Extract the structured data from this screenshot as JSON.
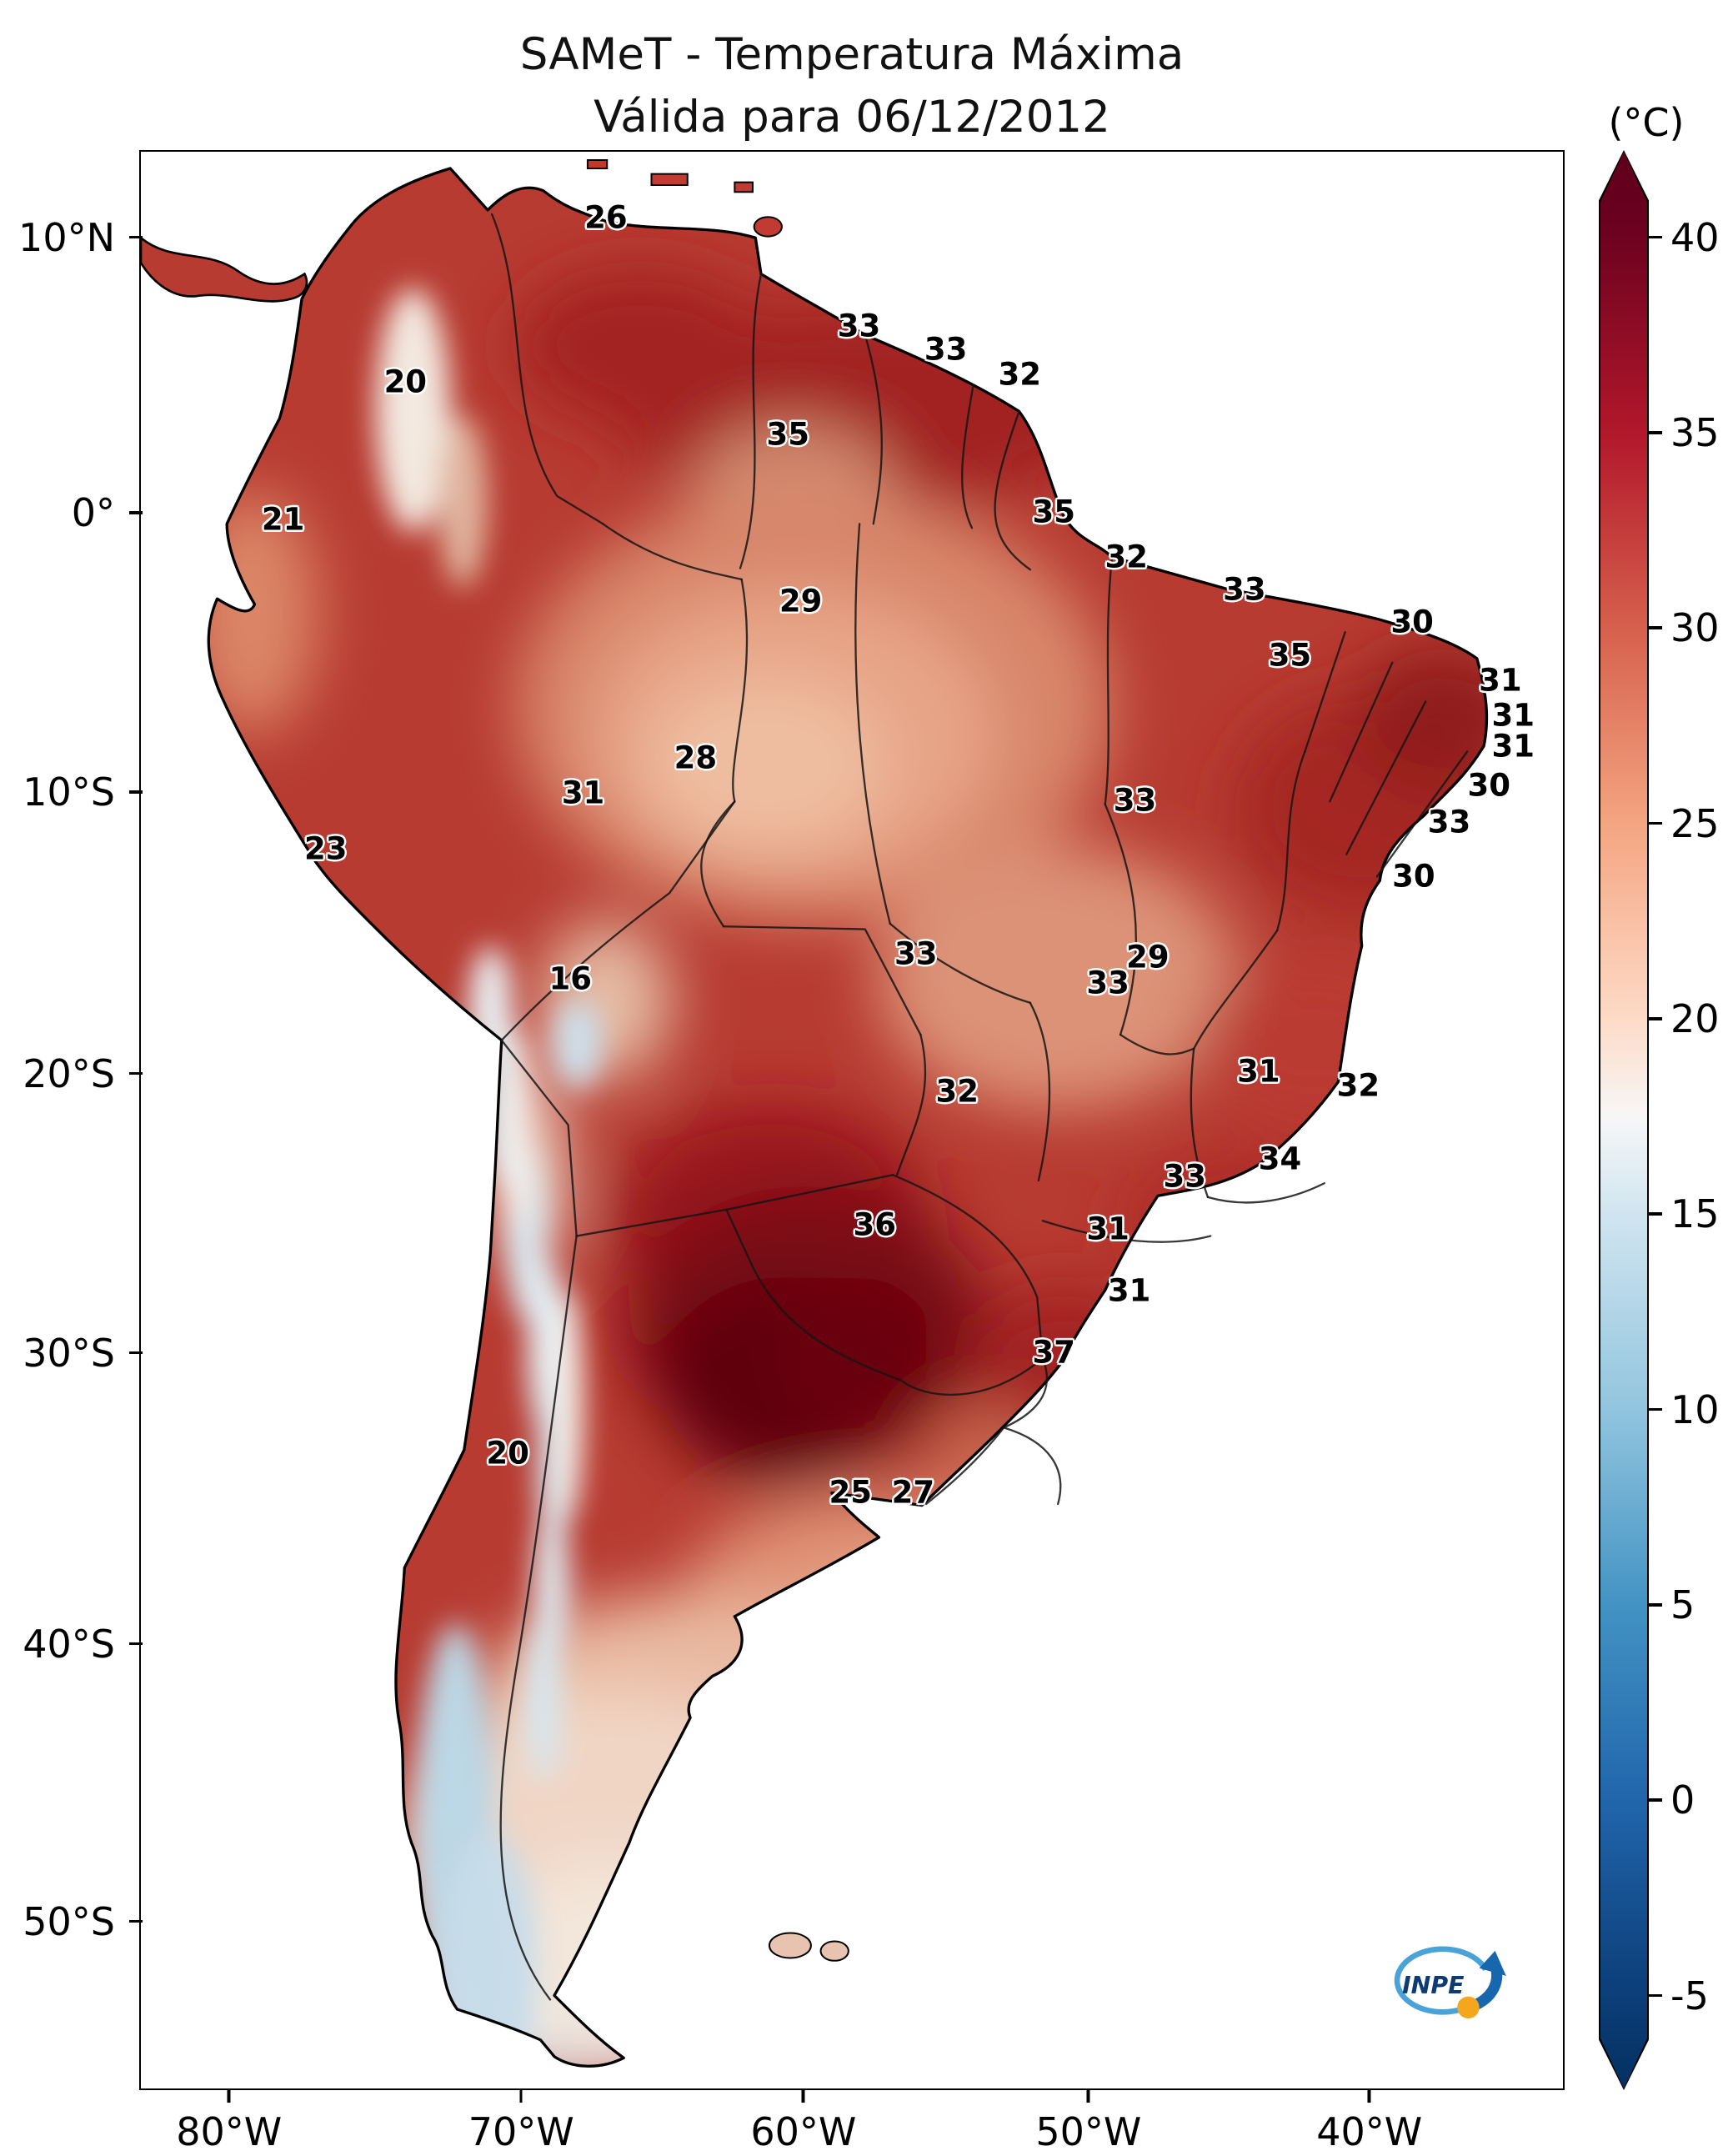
{
  "header": {
    "line1": "SAMeT - Temperatura Máxima",
    "line2": "Válida para 06/12/2012"
  },
  "colorbar": {
    "unit": "(°C)",
    "ticks": [
      "40",
      "35",
      "30",
      "25",
      "20",
      "15",
      "10",
      "5",
      "0",
      "-5"
    ],
    "tick_start_pct": 4.5,
    "tick_step_pct": 10.07,
    "over_color": "#5e001c",
    "under_color": "#053061",
    "gradient": [
      {
        "pct": 0,
        "color": "#5e001c"
      },
      {
        "pct": 2.6,
        "color": "#67001f"
      },
      {
        "pct": 4.5,
        "color": "#6e0220"
      },
      {
        "pct": 14.6,
        "color": "#b2182b"
      },
      {
        "pct": 24.6,
        "color": "#d6604d"
      },
      {
        "pct": 34.7,
        "color": "#f4a582"
      },
      {
        "pct": 44.8,
        "color": "#fddbc7"
      },
      {
        "pct": 49.8,
        "color": "#f7f7f7"
      },
      {
        "pct": 54.8,
        "color": "#d1e5f0"
      },
      {
        "pct": 64.9,
        "color": "#92c5de"
      },
      {
        "pct": 75.0,
        "color": "#4393c3"
      },
      {
        "pct": 85.0,
        "color": "#2166ac"
      },
      {
        "pct": 95.1,
        "color": "#0c3e78"
      },
      {
        "pct": 100,
        "color": "#053061"
      }
    ]
  },
  "axes": {
    "lat_ticks": [
      {
        "label": "10°N",
        "pct": 4.5
      },
      {
        "label": "0°",
        "pct": 18.7
      },
      {
        "label": "10°S",
        "pct": 33.1
      },
      {
        "label": "20°S",
        "pct": 47.6
      },
      {
        "label": "30°S",
        "pct": 62.0
      },
      {
        "label": "40°S",
        "pct": 77.0
      },
      {
        "label": "50°S",
        "pct": 91.3
      }
    ],
    "lon_ticks": [
      {
        "label": "80°W",
        "pct": 6.3
      },
      {
        "label": "70°W",
        "pct": 26.8
      },
      {
        "label": "60°W",
        "pct": 46.6
      },
      {
        "label": "50°W",
        "pct": 66.6
      },
      {
        "label": "40°W",
        "pct": 86.3
      }
    ]
  },
  "logo": {
    "text": "INPE"
  },
  "chart_data": {
    "type": "heatmap",
    "title": "SAMeT - Temperatura Máxima",
    "subtitle": "Válida para 06/12/2012",
    "unit": "°C",
    "colorbar_range": [
      -5,
      40
    ],
    "colorbar_extend": "both",
    "extent": {
      "lon_min": -83,
      "lon_max": -32,
      "lat_min": -56,
      "lat_max": 13
    },
    "points": [
      {
        "value": 26,
        "lat": 10.7,
        "lon": -66.8,
        "x_pct": 32.7,
        "y_pct": 3.4
      },
      {
        "value": 33,
        "lat": 6.9,
        "lon": -57.9,
        "x_pct": 50.5,
        "y_pct": 9.0
      },
      {
        "value": 33,
        "lat": 6.0,
        "lon": -54.9,
        "x_pct": 56.6,
        "y_pct": 10.2
      },
      {
        "value": 32,
        "lat": 5.1,
        "lon": -52.3,
        "x_pct": 61.8,
        "y_pct": 11.5
      },
      {
        "value": 20,
        "lat": 4.9,
        "lon": -73.9,
        "x_pct": 18.6,
        "y_pct": 11.9
      },
      {
        "value": 35,
        "lat": 3.0,
        "lon": -60.4,
        "x_pct": 45.5,
        "y_pct": 14.6
      },
      {
        "value": 21,
        "lat": 0.0,
        "lon": -78.1,
        "x_pct": 10.0,
        "y_pct": 19.0
      },
      {
        "value": 35,
        "lat": 0.3,
        "lon": -51.1,
        "x_pct": 64.2,
        "y_pct": 18.6
      },
      {
        "value": 32,
        "lat": -1.3,
        "lon": -48.5,
        "x_pct": 69.3,
        "y_pct": 20.9
      },
      {
        "value": 29,
        "lat": -3.0,
        "lon": -60.0,
        "x_pct": 46.4,
        "y_pct": 23.2
      },
      {
        "value": 33,
        "lat": -2.5,
        "lon": -44.4,
        "x_pct": 77.6,
        "y_pct": 22.6
      },
      {
        "value": 30,
        "lat": -3.7,
        "lon": -38.5,
        "x_pct": 89.4,
        "y_pct": 24.3
      },
      {
        "value": 35,
        "lat": -4.9,
        "lon": -42.8,
        "x_pct": 80.8,
        "y_pct": 26.0
      },
      {
        "value": 31,
        "lat": -5.8,
        "lon": -35.4,
        "x_pct": 95.6,
        "y_pct": 27.3
      },
      {
        "value": 31,
        "lat": -7.0,
        "lon": -34.9,
        "x_pct": 96.5,
        "y_pct": 29.1
      },
      {
        "value": 31,
        "lat": -8.1,
        "lon": -34.9,
        "x_pct": 96.5,
        "y_pct": 30.7
      },
      {
        "value": 28,
        "lat": -8.6,
        "lon": -63.7,
        "x_pct": 39.0,
        "y_pct": 31.3
      },
      {
        "value": 31,
        "lat": -9.8,
        "lon": -67.6,
        "x_pct": 31.1,
        "y_pct": 33.1
      },
      {
        "value": 30,
        "lat": -9.5,
        "lon": -35.8,
        "x_pct": 94.8,
        "y_pct": 32.7
      },
      {
        "value": 33,
        "lat": -10.0,
        "lon": -48.2,
        "x_pct": 69.9,
        "y_pct": 33.5
      },
      {
        "value": 33,
        "lat": -10.8,
        "lon": -37.2,
        "x_pct": 92.0,
        "y_pct": 34.6
      },
      {
        "value": 23,
        "lat": -11.8,
        "lon": -76.6,
        "x_pct": 13.0,
        "y_pct": 36.0
      },
      {
        "value": 30,
        "lat": -12.8,
        "lon": -38.5,
        "x_pct": 89.5,
        "y_pct": 37.4
      },
      {
        "value": 16,
        "lat": -16.4,
        "lon": -68.0,
        "x_pct": 30.2,
        "y_pct": 42.7
      },
      {
        "value": 33,
        "lat": -15.5,
        "lon": -55.9,
        "x_pct": 54.5,
        "y_pct": 41.4
      },
      {
        "value": 29,
        "lat": -15.6,
        "lon": -47.8,
        "x_pct": 70.8,
        "y_pct": 41.6
      },
      {
        "value": 33,
        "lat": -16.6,
        "lon": -49.2,
        "x_pct": 68.0,
        "y_pct": 42.9
      },
      {
        "value": 31,
        "lat": -19.8,
        "lon": -43.9,
        "x_pct": 78.6,
        "y_pct": 47.5
      },
      {
        "value": 32,
        "lat": -20.2,
        "lon": -40.4,
        "x_pct": 85.6,
        "y_pct": 48.2
      },
      {
        "value": 32,
        "lat": -20.4,
        "lon": -54.5,
        "x_pct": 57.4,
        "y_pct": 48.5
      },
      {
        "value": 33,
        "lat": -23.5,
        "lon": -46.5,
        "x_pct": 73.4,
        "y_pct": 52.9
      },
      {
        "value": 34,
        "lat": -22.8,
        "lon": -43.1,
        "x_pct": 80.1,
        "y_pct": 52.0
      },
      {
        "value": 36,
        "lat": -25.2,
        "lon": -57.4,
        "x_pct": 51.6,
        "y_pct": 55.4
      },
      {
        "value": 31,
        "lat": -25.3,
        "lon": -49.2,
        "x_pct": 68.0,
        "y_pct": 55.6
      },
      {
        "value": 31,
        "lat": -27.5,
        "lon": -48.4,
        "x_pct": 69.5,
        "y_pct": 58.8
      },
      {
        "value": 37,
        "lat": -29.8,
        "lon": -51.1,
        "x_pct": 64.2,
        "y_pct": 62.0
      },
      {
        "value": 20,
        "lat": -33.4,
        "lon": -70.3,
        "x_pct": 25.8,
        "y_pct": 67.2
      },
      {
        "value": 25,
        "lat": -34.7,
        "lon": -58.2,
        "x_pct": 49.9,
        "y_pct": 69.2
      },
      {
        "value": 27,
        "lat": -34.7,
        "lon": -56.0,
        "x_pct": 54.3,
        "y_pct": 69.2
      }
    ]
  }
}
